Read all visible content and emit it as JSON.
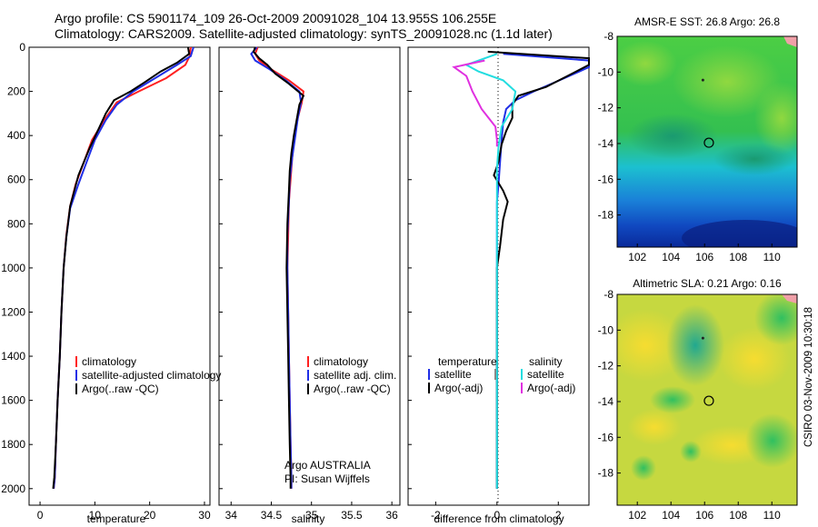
{
  "header": {
    "line1": "Argo profile: CS 5901174_109 26-Oct-2009 20091028_104 13.955S 106.255E",
    "line2": "Climatology: CARS2009. Satellite-adjusted climatology: synTS_20091028.nc (1.1d later)"
  },
  "stamp": "CSIRO 03-Nov-2009 10:30:18",
  "colors": {
    "climatology": "#ff2020",
    "satellite": "#1f2ee6",
    "argo": "#000000",
    "sal_satellite": "#22dde0",
    "sal_argo": "#e030e0"
  },
  "chart_data": [
    {
      "type": "line",
      "id": "temperature",
      "xlabel": "temperature",
      "xlim": [
        -2,
        31
      ],
      "xticks": [
        0,
        10,
        20,
        30
      ],
      "ylim": [
        2075,
        0
      ],
      "yticks": [
        0,
        200,
        400,
        600,
        800,
        1000,
        1200,
        1400,
        1600,
        1800,
        2000
      ],
      "legend": [
        "climatology",
        "satellite-adjusted climatology",
        "Argo(..raw -QC)"
      ],
      "series": [
        {
          "name": "climatology",
          "color": "#ff2020",
          "x": [
            27.5,
            27.3,
            26.5,
            23,
            18,
            14,
            12,
            9.5,
            8,
            6.5,
            5.5,
            4.8,
            4.3,
            3.9,
            3.6,
            3.2,
            2.9,
            2.7,
            2.5
          ],
          "y": [
            0,
            40,
            80,
            140,
            200,
            250,
            320,
            420,
            520,
            620,
            720,
            850,
            1000,
            1200,
            1400,
            1600,
            1800,
            1950,
            2000
          ]
        },
        {
          "name": "satellite",
          "color": "#1f2ee6",
          "x": [
            28,
            27.5,
            25,
            21,
            17,
            14,
            12,
            10,
            8.5,
            7,
            5.5,
            4.8,
            4.3,
            3.9,
            3.6,
            3.2,
            2.9,
            2.7,
            2.5
          ],
          "y": [
            0,
            40,
            80,
            140,
            200,
            260,
            330,
            420,
            520,
            620,
            730,
            860,
            1000,
            1200,
            1400,
            1600,
            1800,
            1950,
            2000
          ]
        },
        {
          "name": "argo",
          "color": "#000000",
          "x": [
            27,
            27.2,
            25,
            22,
            19,
            16.5,
            13.5,
            12,
            10.5,
            9,
            7,
            5.5,
            4.8,
            4.3,
            3.9,
            3.6,
            3.2,
            2.9,
            2.6,
            2.4
          ],
          "y": [
            0,
            30,
            70,
            110,
            160,
            200,
            240,
            300,
            380,
            460,
            580,
            720,
            860,
            1000,
            1200,
            1400,
            1600,
            1800,
            1950,
            2000
          ]
        }
      ]
    },
    {
      "type": "line",
      "id": "salinity",
      "xlabel": "salinity",
      "xlim": [
        33.85,
        36.1
      ],
      "xticks": [
        34,
        34.5,
        35,
        35.5,
        36
      ],
      "ylim": [
        2075,
        0
      ],
      "legend": [
        "climatology",
        "satellite adj. clim.",
        "Argo(..raw -QC)"
      ],
      "annotation": [
        "Argo AUSTRALIA",
        "PI: Susan Wijffels"
      ],
      "series": [
        {
          "name": "climatology",
          "color": "#ff2020",
          "x": [
            34.33,
            34.3,
            34.35,
            34.5,
            34.72,
            34.9,
            34.88,
            34.83,
            34.79,
            34.76,
            34.74,
            34.72,
            34.71,
            34.7,
            34.71,
            34.72,
            34.73,
            34.74,
            34.75,
            34.75
          ],
          "y": [
            0,
            30,
            60,
            100,
            150,
            200,
            250,
            320,
            400,
            500,
            600,
            700,
            850,
            1000,
            1200,
            1400,
            1600,
            1800,
            1950,
            2000
          ]
        },
        {
          "name": "satellite",
          "color": "#1f2ee6",
          "x": [
            34.32,
            34.25,
            34.3,
            34.48,
            34.68,
            34.85,
            34.87,
            34.83,
            34.8,
            34.76,
            34.73,
            34.72,
            34.7,
            34.7,
            34.71,
            34.72,
            34.73,
            34.74,
            34.75,
            34.75
          ],
          "y": [
            0,
            30,
            60,
            100,
            150,
            200,
            250,
            320,
            400,
            500,
            600,
            700,
            850,
            1000,
            1200,
            1400,
            1600,
            1800,
            1950,
            2000
          ]
        },
        {
          "name": "argo",
          "color": "#000000",
          "x": [
            34.3,
            34.28,
            34.35,
            34.45,
            34.55,
            34.7,
            34.8,
            34.9,
            34.85,
            34.82,
            34.78,
            34.75,
            34.73,
            34.72,
            34.7,
            34.69,
            34.7,
            34.71,
            34.72,
            34.73,
            34.74,
            34.74
          ],
          "y": [
            0,
            20,
            50,
            80,
            120,
            160,
            190,
            220,
            260,
            320,
            400,
            480,
            560,
            650,
            800,
            1000,
            1200,
            1400,
            1600,
            1800,
            1950,
            2000
          ]
        }
      ]
    },
    {
      "type": "line",
      "id": "difference",
      "xlabel": "difference from climatology",
      "xlim": [
        -2.9,
        3.0
      ],
      "xticks": [
        -2,
        0,
        2
      ],
      "ylim": [
        2075,
        0
      ],
      "legend_left": [
        "temperature",
        "satellite",
        "Argo(-adj)"
      ],
      "legend_right": [
        "salinity",
        "satellite",
        "Argo(-adj)"
      ],
      "series": [
        {
          "name": "temp-satellite",
          "color": "#1f2ee6",
          "x": [
            0.2,
            3.0,
            3.0,
            2.2,
            1.2,
            0.6,
            0.3,
            0.2,
            0.15,
            0.1,
            0.05,
            0.0,
            0.0,
            0.0,
            0.0,
            0.0,
            0.0,
            0.0,
            0.0
          ],
          "y": [
            30,
            60,
            90,
            140,
            200,
            240,
            280,
            340,
            420,
            520,
            620,
            700,
            800,
            1000,
            1200,
            1400,
            1600,
            1800,
            2000
          ]
        },
        {
          "name": "temp-argo",
          "color": "#000000",
          "x": [
            -0.3,
            3.0,
            3.0,
            2.3,
            1.6,
            0.7,
            0.5,
            0.5,
            0.3,
            0.15,
            0.05,
            -0.1,
            0.2,
            0.35,
            0.2,
            0.1,
            0.0,
            0.0,
            0.0,
            0.0,
            0.0,
            0.0
          ],
          "y": [
            20,
            50,
            80,
            130,
            180,
            220,
            260,
            320,
            380,
            440,
            520,
            580,
            650,
            700,
            780,
            900,
            1000,
            1200,
            1400,
            1600,
            1800,
            2000
          ]
        },
        {
          "name": "sal-satellite",
          "color": "#22dde0",
          "x": [
            0.0,
            -1.0,
            -0.6,
            0.2,
            0.6,
            0.5,
            0.15,
            0.05,
            0.0,
            0.0,
            0.0,
            0.0,
            0.0,
            0.0,
            0.0,
            0.0
          ],
          "y": [
            30,
            80,
            110,
            150,
            200,
            280,
            360,
            450,
            550,
            650,
            800,
            1000,
            1200,
            1400,
            1600,
            2000
          ]
        },
        {
          "name": "sal-argo",
          "color": "#e030e0",
          "x": [
            -0.4,
            -1.4,
            -1.0,
            -0.8,
            -0.5,
            -0.05,
            0.0,
            0.0
          ],
          "y": [
            60,
            90,
            130,
            200,
            280,
            360,
            420,
            450
          ]
        }
      ]
    },
    {
      "type": "heatmap",
      "id": "sst-map",
      "title": "AMSR-E SST: 26.8 Argo: 26.8",
      "xlim": [
        100.8,
        111.5
      ],
      "ylim": [
        -19.8,
        -8
      ],
      "xticks": [
        102,
        104,
        106,
        108,
        110
      ],
      "yticks": [
        -8,
        -10,
        -12,
        -14,
        -16,
        -18
      ],
      "argo_location": [
        106.255,
        -13.955
      ]
    },
    {
      "type": "heatmap",
      "id": "sla-map",
      "title": "Altimetric SLA: 0.21 Argo: 0.16",
      "xlim": [
        100.8,
        111.5
      ],
      "ylim": [
        -19.8,
        -8
      ],
      "xticks": [
        102,
        104,
        106,
        108,
        110
      ],
      "yticks": [
        -8,
        -10,
        -12,
        -14,
        -16,
        -18
      ],
      "argo_location": [
        106.255,
        -13.955
      ]
    }
  ]
}
